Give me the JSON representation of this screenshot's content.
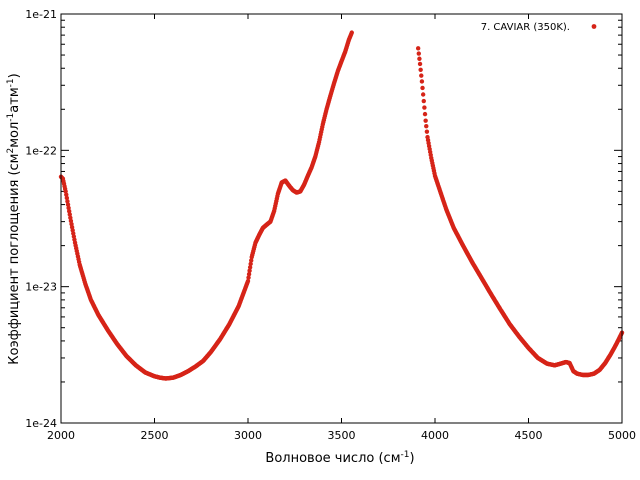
{
  "chart_data": {
    "type": "scatter",
    "xlabel_main": "Волновое число (см",
    "xlabel_sup": "-1",
    "xlabel_end": ")",
    "ylabel_parts": [
      "Коэффициент поглощения (см",
      "2",
      "мол",
      "-1",
      "атм",
      "-1",
      ")"
    ],
    "x_ticks": [
      "2000",
      "2500",
      "3000",
      "3500",
      "4000",
      "4500",
      "5000"
    ],
    "y_ticks": [
      "1e-24",
      "1e-23",
      "1e-22",
      "1e-21"
    ],
    "xlim": [
      2000,
      5000
    ],
    "ylim": [
      1e-24,
      1e-21
    ],
    "log_y": true,
    "grid": false,
    "legend_position": "top-right",
    "series": [
      {
        "name": "7. CAVIAR (350K).",
        "color": "#d62418",
        "segments": [
          {
            "x": [
              2000,
              2010,
              2025,
              2050,
              2075,
              2100,
              2130,
              2160,
              2200,
              2250,
              2300,
              2350,
              2400,
              2450,
              2500,
              2530,
              2560,
              2600,
              2640,
              2680,
              2720,
              2760,
              2800,
              2850,
              2900,
              2950,
              3000,
              3020,
              3040,
              3060,
              3080,
              3100,
              3120,
              3140,
              3160,
              3180,
              3200,
              3220,
              3240,
              3260,
              3280,
              3300,
              3320,
              3340,
              3360,
              3380,
              3400,
              3420,
              3440,
              3460,
              3480,
              3500,
              3520,
              3540,
              3555
            ],
            "y": [
              6.4e-23,
              6.2e-23,
              5e-23,
              3.2e-23,
              2.1e-23,
              1.45e-23,
              1.05e-23,
              8e-24,
              6.2e-24,
              4.8e-24,
              3.8e-24,
              3.1e-24,
              2.65e-24,
              2.35e-24,
              2.2e-24,
              2.15e-24,
              2.12e-24,
              2.15e-24,
              2.25e-24,
              2.4e-24,
              2.6e-24,
              2.85e-24,
              3.3e-24,
              4.1e-24,
              5.3e-24,
              7.2e-24,
              1.1e-23,
              1.65e-23,
              2.1e-23,
              2.4e-23,
              2.7e-23,
              2.85e-23,
              3e-23,
              3.6e-23,
              4.8e-23,
              5.8e-23,
              6e-23,
              5.5e-23,
              5.1e-23,
              4.9e-23,
              5e-23,
              5.6e-23,
              6.5e-23,
              7.5e-23,
              9e-23,
              1.15e-22,
              1.55e-22,
              2e-22,
              2.5e-22,
              3.1e-22,
              3.8e-22,
              4.5e-22,
              5.3e-22,
              6.5e-22,
              7.3e-22
            ]
          },
          {
            "x": [
              3910,
              3920,
              3930,
              3940,
              3950,
              3960,
              3980,
              4000,
              4030,
              4060,
              4100,
              4150,
              4200,
              4250,
              4300,
              4350,
              4400,
              4450,
              4500,
              4550,
              4600,
              4640,
              4670,
              4700,
              4720,
              4740,
              4760,
              4790,
              4820,
              4850,
              4880,
              4910,
              4940,
              4970,
              5000
            ],
            "y": [
              5.6e-22,
              4.3e-22,
              3.2e-22,
              2.3e-22,
              1.65e-22,
              1.25e-22,
              8.8e-23,
              6.5e-23,
              4.9e-23,
              3.7e-23,
              2.7e-23,
              2e-23,
              1.5e-23,
              1.15e-23,
              8.8e-24,
              6.8e-24,
              5.3e-24,
              4.3e-24,
              3.55e-24,
              3e-24,
              2.72e-24,
              2.65e-24,
              2.72e-24,
              2.8e-24,
              2.75e-24,
              2.4e-24,
              2.3e-24,
              2.25e-24,
              2.25e-24,
              2.3e-24,
              2.45e-24,
              2.75e-24,
              3.2e-24,
              3.8e-24,
              4.6e-24
            ]
          }
        ]
      }
    ]
  }
}
